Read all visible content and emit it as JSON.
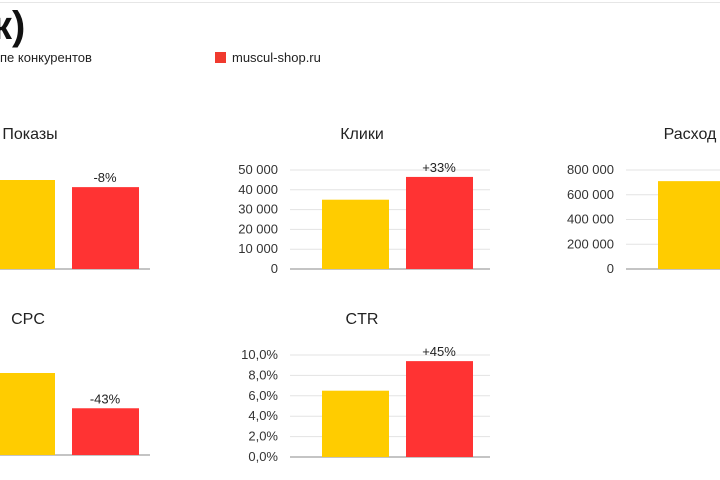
{
  "header": {
    "title": "к)"
  },
  "legend": [
    {
      "label": "пе конкурентов",
      "color": "#FFCC00"
    },
    {
      "label": "muscul-shop.ru",
      "color": "#F03A2E"
    }
  ],
  "colors": {
    "competitors": "#FFCC00",
    "site": "#FF3333"
  },
  "chart_data": [
    {
      "type": "bar",
      "title": "Показы",
      "categories": [
        "конкуренты",
        "muscul-shop.ru"
      ],
      "values": [
        100,
        92
      ],
      "ylim": [
        0,
        100
      ],
      "yticks": [],
      "annotation": "-8%"
    },
    {
      "type": "bar",
      "title": "Клики",
      "categories": [
        "конкуренты",
        "muscul-shop.ru"
      ],
      "values": [
        35000,
        46500
      ],
      "ylim": [
        0,
        50000
      ],
      "yticks": [
        "0",
        "10 000",
        "20 000",
        "30 000",
        "40 000",
        "50 000"
      ],
      "annotation": "+33%"
    },
    {
      "type": "bar",
      "title": "Расход",
      "categories": [
        "конкуренты",
        "muscul-shop.ru"
      ],
      "values": [
        710000,
        null
      ],
      "ylim": [
        0,
        800000
      ],
      "yticks": [
        "0",
        "200 000",
        "400 000",
        "600 000",
        "800 000"
      ],
      "annotation": ""
    },
    {
      "type": "bar",
      "title": "CPC",
      "categories": [
        "конкуренты",
        "muscul-shop.ru"
      ],
      "values": [
        100,
        57
      ],
      "ylim": [
        0,
        100
      ],
      "yticks": [],
      "annotation": "-43%"
    },
    {
      "type": "bar",
      "title": "CTR",
      "categories": [
        "конкуренты",
        "muscul-shop.ru"
      ],
      "values": [
        6.5,
        9.4
      ],
      "ylim": [
        0,
        10
      ],
      "yticks": [
        "0,0%",
        "2,0%",
        "4,0%",
        "6,0%",
        "8,0%",
        "10,0%"
      ],
      "annotation": "+45%"
    }
  ]
}
